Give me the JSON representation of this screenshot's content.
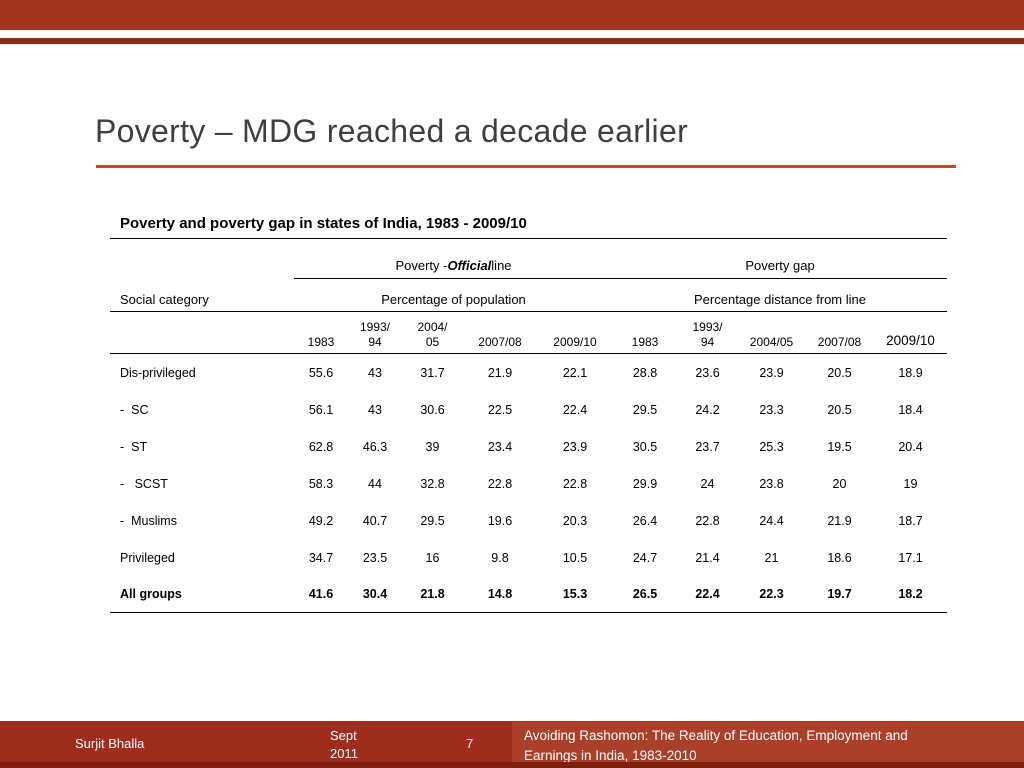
{
  "slide": {
    "title": "Poverty – MDG reached a decade earlier"
  },
  "table": {
    "caption": "Poverty and poverty gap in states of India, 1983 - 2009/10",
    "group1": {
      "prefix": "Poverty - ",
      "emph": "Official",
      "suffix": " line"
    },
    "group2": "Poverty gap",
    "category_header": "Social category",
    "subheader1": "Percentage of population",
    "subheader2": "Percentage distance from line",
    "year_headers": [
      "1983",
      "1993/\n94",
      "2004/\n05",
      "2007/08",
      "2009/10",
      "1983",
      "1993/\n94",
      "2004/05",
      "2007/08",
      "2009/10"
    ],
    "rows": [
      {
        "label": "Dis-privileged",
        "bold": false,
        "values": [
          "55.6",
          "43",
          "31.7",
          "21.9",
          "22.1",
          "28.8",
          "23.6",
          "23.9",
          "20.5",
          "18.9"
        ]
      },
      {
        "label": "-  SC",
        "bold": false,
        "values": [
          "56.1",
          "43",
          "30.6",
          "22.5",
          "22.4",
          "29.5",
          "24.2",
          "23.3",
          "20.5",
          "18.4"
        ]
      },
      {
        "label": "-  ST",
        "bold": false,
        "values": [
          "62.8",
          "46.3",
          "39",
          "23.4",
          "23.9",
          "30.5",
          "23.7",
          "25.3",
          "19.5",
          "20.4"
        ]
      },
      {
        "label": "-   SCST",
        "bold": false,
        "values": [
          "58.3",
          "44",
          "32.8",
          "22.8",
          "22.8",
          "29.9",
          "24",
          "23.8",
          "20",
          "19"
        ]
      },
      {
        "label": "-  Muslims",
        "bold": false,
        "values": [
          "49.2",
          "40.7",
          "29.5",
          "19.6",
          "20.3",
          "26.4",
          "22.8",
          "24.4",
          "21.9",
          "18.7"
        ]
      },
      {
        "label": "Privileged",
        "bold": false,
        "values": [
          "34.7",
          "23.5",
          "16",
          "9.8",
          "10.5",
          "24.7",
          "21.4",
          "21",
          "18.6",
          "17.1"
        ]
      },
      {
        "label": "All groups",
        "bold": true,
        "values": [
          "41.6",
          "30.4",
          "21.8",
          "14.8",
          "15.3",
          "26.5",
          "22.4",
          "22.3",
          "19.7",
          "18.2"
        ]
      }
    ]
  },
  "footer": {
    "author": "Surjit Bhalla",
    "date": "Sept\n2011",
    "page_number": "7",
    "presentation_title": "Avoiding Rashomon: The Reality of Education, Employment and\nEarnings in India, 1983-2010"
  }
}
